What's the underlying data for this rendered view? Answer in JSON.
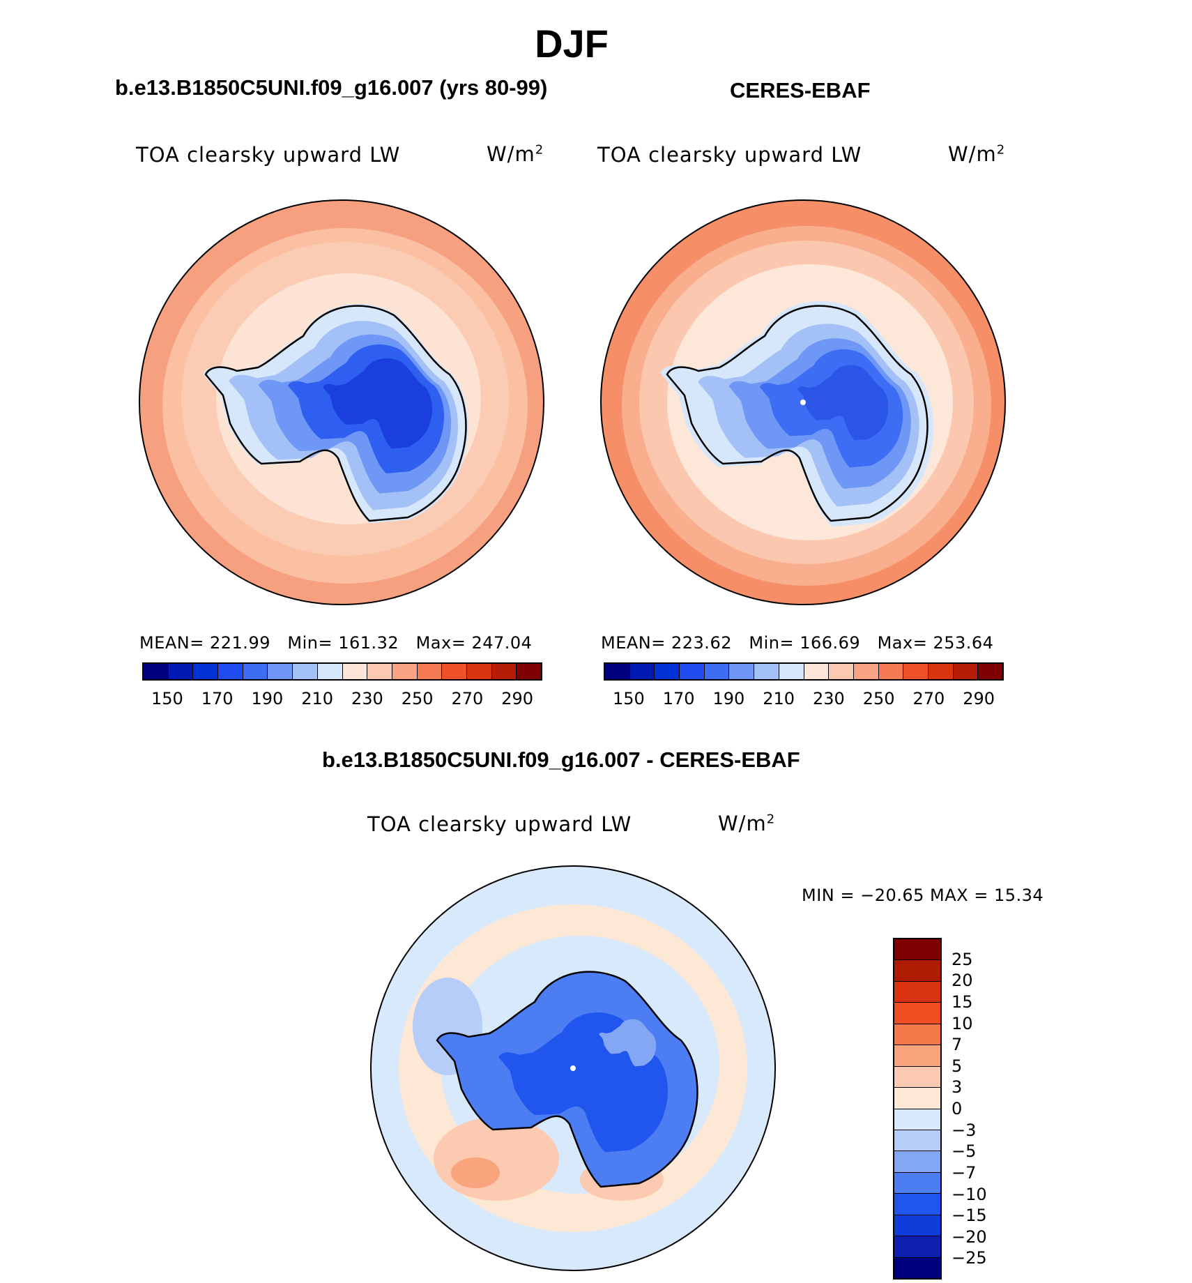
{
  "page_title": "DJF",
  "panels": {
    "left": {
      "case_title": "b.e13.B1850C5UNI.f09_g16.007 (yrs 80-99)",
      "variable": "TOA clearsky upward LW",
      "units": "W/m",
      "units_exp": "2",
      "mean_label": "MEAN=",
      "mean": "221.99",
      "min_label": "Min=",
      "min": "161.32",
      "max_label": "Max=",
      "max": "247.04"
    },
    "right": {
      "case_title": "CERES-EBAF",
      "variable": "TOA clearsky upward LW",
      "units": "W/m",
      "units_exp": "2",
      "mean_label": "MEAN=",
      "mean": "223.62",
      "min_label": "Min=",
      "min": "166.69",
      "max_label": "Max=",
      "max": "253.64"
    },
    "diff": {
      "case_title": "b.e13.B1850C5UNI.f09_g16.007 - CERES-EBAF",
      "variable": "TOA clearsky upward LW",
      "units": "W/m",
      "units_exp": "2",
      "minmax_text": "MIN = −20.65 MAX =   15.34"
    }
  },
  "colors": {
    "abs_scale": [
      "#00007f",
      "#0019b2",
      "#0032d8",
      "#1f4cf0",
      "#3d6df5",
      "#6f97f5",
      "#a3c0f7",
      "#d6e6fb",
      "#fde6d7",
      "#fbc9b0",
      "#f8a484",
      "#f57c52",
      "#ef5027",
      "#da3310",
      "#b51d06",
      "#7e0000"
    ],
    "diff_scale": [
      "#00007f",
      "#0c1fb0",
      "#0f3dd9",
      "#2156ee",
      "#4c7df2",
      "#84a7f3",
      "#b5cdf8",
      "#d9e9fc",
      "#fde8d6",
      "#fbcab0",
      "#f9a47c",
      "#f5784a",
      "#f04d23",
      "#d9330f",
      "#b01b04",
      "#7e0000"
    ],
    "map_outer": "#fbb79a",
    "map_mid": "#fbcfb8",
    "map_inner": "#fde5d6",
    "land_pale": "#d6e6fb",
    "land_light": "#a3c0f7",
    "land_mid": "#6f97f5",
    "land_dark": "#2f5ff0",
    "land_deep": "#1940dc"
  },
  "chart_data": [
    {
      "type": "heatmap",
      "title": "b.e13.B1850C5UNI.f09_g16.007 (yrs 80-99)",
      "subtitle": "TOA clearsky upward LW",
      "units": "W/m2",
      "projection": "south polar stereographic",
      "stats": {
        "mean": 221.99,
        "min": 161.32,
        "max": 247.04
      },
      "colorbar_ticks": [
        "150",
        "170",
        "190",
        "210",
        "230",
        "250",
        "270",
        "290"
      ]
    },
    {
      "type": "heatmap",
      "title": "CERES-EBAF",
      "subtitle": "TOA clearsky upward LW",
      "units": "W/m2",
      "projection": "south polar stereographic",
      "stats": {
        "mean": 223.62,
        "min": 166.69,
        "max": 253.64
      },
      "colorbar_ticks": [
        "150",
        "170",
        "190",
        "210",
        "230",
        "250",
        "270",
        "290"
      ]
    },
    {
      "type": "heatmap",
      "title": "b.e13.B1850C5UNI.f09_g16.007 - CERES-EBAF",
      "subtitle": "TOA clearsky upward LW",
      "units": "W/m2",
      "projection": "south polar stereographic",
      "stats": {
        "min": -20.65,
        "max": 15.34
      },
      "colorbar_ticks": [
        "25",
        "20",
        "15",
        "10",
        "7",
        "5",
        "3",
        "0",
        "−3",
        "−5",
        "−7",
        "−10",
        "−15",
        "−20",
        "−25"
      ]
    }
  ]
}
